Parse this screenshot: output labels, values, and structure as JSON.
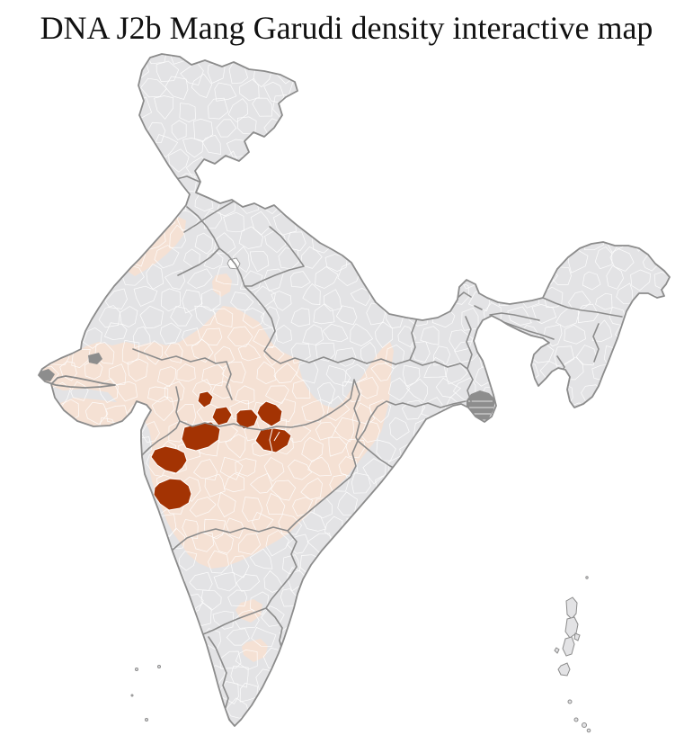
{
  "title": "DNA J2b Mang Garudi density interactive map",
  "map": {
    "colors": {
      "background": "#ffffff",
      "district-default": "#e3e3e5",
      "district-low": "#f5e1d4",
      "district-high": "#a33303",
      "district-line": "#ffffff",
      "state-line": "#8c8c8c",
      "special-area": "#8d8d8d"
    }
  }
}
